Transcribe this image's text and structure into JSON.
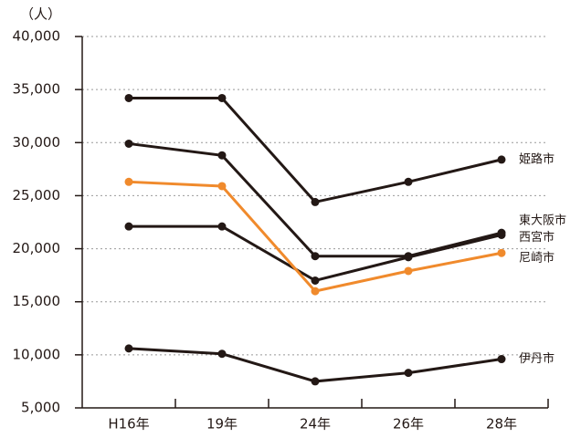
{
  "chart_data": {
    "type": "line",
    "y_unit_label": "（人）",
    "categories": [
      "H16年",
      "19年",
      "24年",
      "26年",
      "28年"
    ],
    "series": [
      {
        "name": "姫路市",
        "color": "#231815",
        "values": [
          34200,
          34200,
          24400,
          26300,
          28400
        ]
      },
      {
        "name": "東大阪市",
        "color": "#231815",
        "values": [
          29900,
          28800,
          19300,
          19300,
          21500
        ]
      },
      {
        "name": "西宮市",
        "color": "#231815",
        "values": [
          22100,
          22100,
          17000,
          19200,
          21300
        ]
      },
      {
        "name": "尼崎市",
        "color": "#f08a2c",
        "values": [
          26300,
          25900,
          16000,
          17900,
          19600
        ]
      },
      {
        "name": "伊丹市",
        "color": "#231815",
        "values": [
          10600,
          10100,
          7500,
          8300,
          9600
        ]
      }
    ],
    "ylim": [
      5000,
      40000
    ],
    "yticks": [
      {
        "value": 5000,
        "label": "5,000"
      },
      {
        "value": 10000,
        "label": "10,000"
      },
      {
        "value": 15000,
        "label": "15,000"
      },
      {
        "value": 20000,
        "label": "20,000"
      },
      {
        "value": 25000,
        "label": "25,000"
      },
      {
        "value": 30000,
        "label": "30,000"
      },
      {
        "value": 35000,
        "label": "35,000"
      },
      {
        "value": 40000,
        "label": "40,000"
      }
    ],
    "grid": true
  }
}
